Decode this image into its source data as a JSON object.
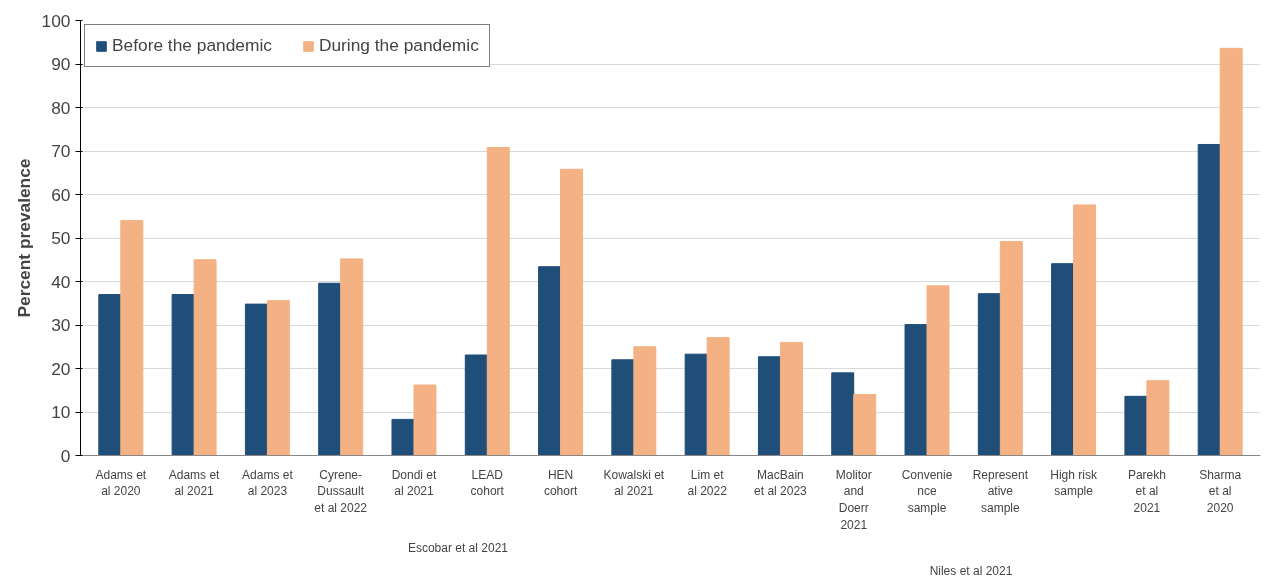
{
  "chart_data": {
    "type": "bar",
    "ylabel": "Percent prevalence",
    "categories": [
      "Adams et\nal 2020",
      "Adams et\nal 2021",
      "Adams et\nal 2023",
      "Cyrene-\nDussault\net al 2022",
      "Dondi et\nal 2021",
      "LEAD\ncohort",
      "HEN\ncohort",
      "Kowalski et\nal 2021",
      "Lim et\nal 2022",
      "MacBain\net al 2023",
      "Molitor\nand\nDoerr\n2021",
      "Convenie\nnce\nsample",
      "Represent\native\nsample",
      "High risk\nsample",
      "Parekh\net al\n2021",
      "Sharma\net al\n2020"
    ],
    "series": [
      {
        "name": "Before the pandemic",
        "color": "#1f4e79",
        "values": [
          37,
          37,
          34.8,
          39.6,
          8.3,
          23.1,
          43.4,
          22,
          23.3,
          22.7,
          19,
          30.1,
          37.2,
          44.1,
          13.6,
          71.5
        ]
      },
      {
        "name": "During the pandemic",
        "color": "#f4b183",
        "values": [
          54,
          45,
          35.6,
          45.2,
          16.2,
          70.8,
          65.8,
          25,
          27.1,
          26,
          14,
          39,
          49.2,
          57.6,
          17.2,
          93.6
        ]
      }
    ],
    "ylim": [
      0,
      100
    ],
    "yticks": [
      0,
      10,
      20,
      30,
      40,
      50,
      60,
      70,
      80,
      90,
      100
    ],
    "grid": "y",
    "legend": "top left",
    "annotations": [
      "Escobar et al 2021",
      "Niles et al 2021"
    ]
  }
}
